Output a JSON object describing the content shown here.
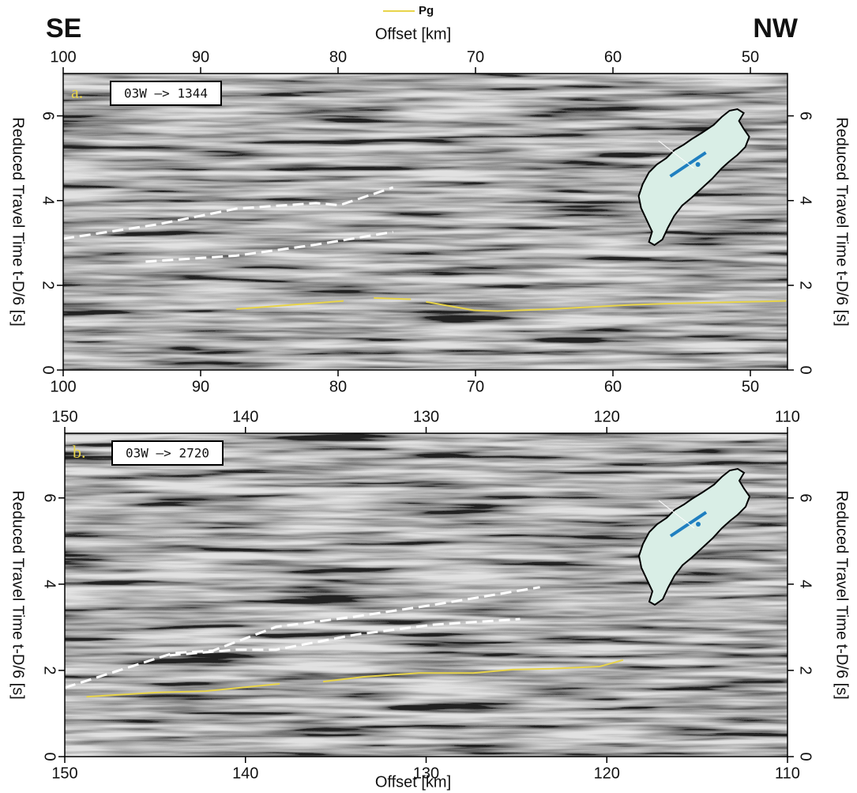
{
  "chart_data": [
    {
      "type": "line",
      "left_label": "SE",
      "right_label": "NW",
      "top_xlabel": "Offset [km]",
      "panel_label": "a.",
      "box_label": "03W –> 1344",
      "ylabel": "Reduced Travel Time t-D/6 [s]",
      "xlim": [
        100,
        47.3
      ],
      "xticks": [
        100,
        90,
        80,
        70,
        60,
        50
      ],
      "ylim": [
        0,
        7
      ],
      "yticks": [
        0,
        2,
        4,
        6
      ],
      "series": [
        {
          "name": "Pg",
          "color": "#e8d44a",
          "x": [
            87.4,
            79.6,
            null,
            77.4,
            74.7,
            null,
            73.6,
            70.1,
            68.4,
            64.4,
            58.6,
            55.7,
            47.4
          ],
          "values": [
            1.44,
            1.63,
            null,
            1.7,
            1.67,
            null,
            1.61,
            1.41,
            1.39,
            1.44,
            1.54,
            1.57,
            1.63
          ]
        },
        {
          "color": "#ffffff",
          "dash": true,
          "x": [
            100,
            93.1,
            87.4,
            81.6,
            79.9,
            76.0
          ],
          "values": [
            3.1,
            3.44,
            3.81,
            3.94,
            3.89,
            4.31
          ]
        },
        {
          "color": "#ffffff",
          "dash": true,
          "x": [
            94,
            87.4,
            81.6,
            76
          ],
          "values": [
            2.56,
            2.7,
            2.96,
            3.26
          ]
        }
      ]
    },
    {
      "type": "line",
      "panel_label": "b.",
      "box_label": "03W –> 2720",
      "ylabel": "Reduced Travel Time t-D/6 [s]",
      "xlabel": "Offset [km]",
      "xlim": [
        150,
        110
      ],
      "xticks": [
        150,
        140,
        130,
        120,
        110
      ],
      "ylim": [
        0,
        7.5
      ],
      "yticks": [
        0,
        2,
        4,
        6
      ],
      "series": [
        {
          "color": "#e8d44a",
          "x": [
            148.8,
            144.8,
            142.2,
            138.1,
            null,
            135.7,
            133.5,
            130.4,
            127.4,
            125.2,
            123.0,
            120.4,
            119.1
          ],
          "values": [
            1.39,
            1.49,
            1.52,
            1.69,
            null,
            1.74,
            1.85,
            1.94,
            1.94,
            2.02,
            2.04,
            2.09,
            2.24
          ]
        },
        {
          "color": "#ffffff",
          "dash": true,
          "x": [
            150,
            144.0,
            141.8,
            138.3,
            133.9,
            129.6,
            123.7
          ],
          "values": [
            1.6,
            2.4,
            2.46,
            3.01,
            3.25,
            3.52,
            3.93
          ]
        },
        {
          "color": "#ffffff",
          "dash": true,
          "x": [
            144.2,
            140.5,
            138.3,
            133.9,
            129.6,
            124.8
          ],
          "values": [
            2.35,
            2.48,
            2.48,
            2.83,
            3.06,
            3.19
          ]
        }
      ]
    }
  ]
}
